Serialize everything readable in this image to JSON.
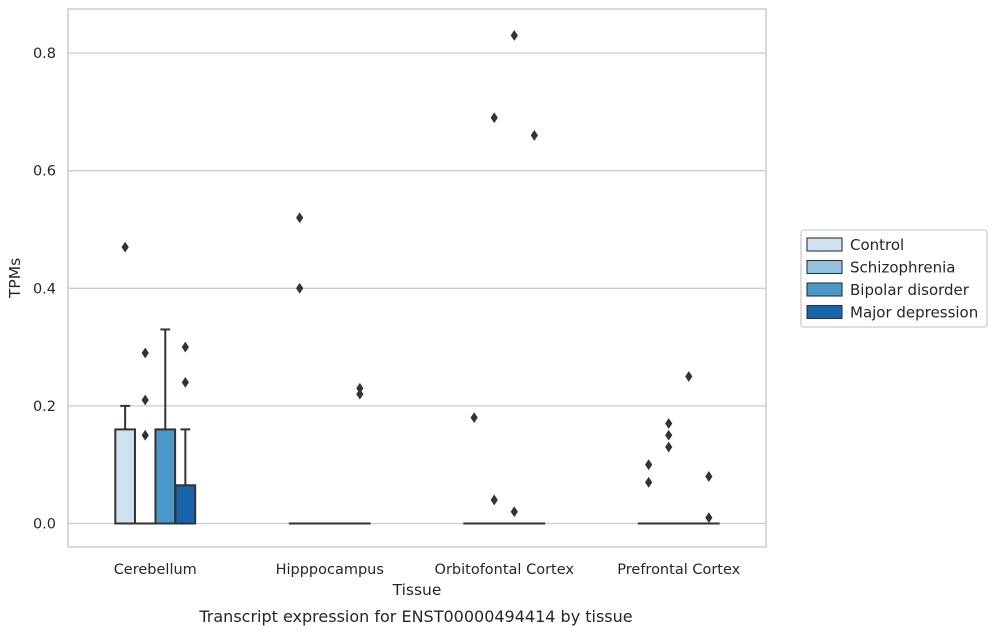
{
  "chart_data": {
    "type": "boxplot",
    "caption": "Transcript expression for ENST00000494414 by tissue",
    "xlabel": "Tissue",
    "ylabel": "TPMs",
    "ylim": [
      -0.04,
      0.875
    ],
    "yticks": [
      0.0,
      0.2,
      0.4,
      0.6,
      0.8
    ],
    "ytick_labels": [
      "0.0",
      "0.2",
      "0.4",
      "0.6",
      "0.8"
    ],
    "grid": "horizontal",
    "legend_position": "right",
    "categories": [
      "Cerebellum",
      "Hipppocampus",
      "Orbitofontal Cortex",
      "Prefrontal Cortex"
    ],
    "series": [
      {
        "name": "Control",
        "color": "#d0e1f2",
        "boxes": [
          {
            "q1": 0,
            "median": 0,
            "q3": 0.16,
            "whisker_low": 0,
            "whisker_high": 0.2,
            "outliers": [
              0.47
            ]
          },
          {
            "q1": 0,
            "median": 0,
            "q3": 0,
            "whisker_low": 0,
            "whisker_high": 0,
            "outliers": [
              0.52,
              0.4
            ]
          },
          {
            "q1": 0,
            "median": 0,
            "q3": 0,
            "whisker_low": 0,
            "whisker_high": 0,
            "outliers": [
              0.18
            ]
          },
          {
            "q1": 0,
            "median": 0,
            "q3": 0,
            "whisker_low": 0,
            "whisker_high": 0,
            "outliers": [
              0.1,
              0.07
            ]
          }
        ]
      },
      {
        "name": "Schizophrenia",
        "color": "#94c4df",
        "boxes": [
          {
            "q1": 0,
            "median": 0,
            "q3": 0,
            "whisker_low": 0,
            "whisker_high": 0,
            "outliers": [
              0.29,
              0.21,
              0.15
            ]
          },
          {
            "q1": 0,
            "median": 0,
            "q3": 0,
            "whisker_low": 0,
            "whisker_high": 0,
            "outliers": []
          },
          {
            "q1": 0,
            "median": 0,
            "q3": 0,
            "whisker_low": 0,
            "whisker_high": 0,
            "outliers": [
              0.69,
              0.04
            ]
          },
          {
            "q1": 0,
            "median": 0,
            "q3": 0,
            "whisker_low": 0,
            "whisker_high": 0,
            "outliers": [
              0.17,
              0.15,
              0.13
            ]
          }
        ]
      },
      {
        "name": "Bipolar disorder",
        "color": "#4a98c9",
        "boxes": [
          {
            "q1": 0,
            "median": 0,
            "q3": 0.16,
            "whisker_low": 0,
            "whisker_high": 0.33,
            "outliers": []
          },
          {
            "q1": 0,
            "median": 0,
            "q3": 0,
            "whisker_low": 0,
            "whisker_high": 0,
            "outliers": []
          },
          {
            "q1": 0,
            "median": 0,
            "q3": 0,
            "whisker_low": 0,
            "whisker_high": 0,
            "outliers": [
              0.83,
              0.02
            ]
          },
          {
            "q1": 0,
            "median": 0,
            "q3": 0,
            "whisker_low": 0,
            "whisker_high": 0,
            "outliers": [
              0.25
            ]
          }
        ]
      },
      {
        "name": "Major depression",
        "color": "#1764ab",
        "boxes": [
          {
            "q1": 0,
            "median": 0,
            "q3": 0.065,
            "whisker_low": 0,
            "whisker_high": 0.16,
            "outliers": [
              0.3,
              0.24
            ]
          },
          {
            "q1": 0,
            "median": 0,
            "q3": 0,
            "whisker_low": 0,
            "whisker_high": 0,
            "outliers": [
              0.23,
              0.22
            ]
          },
          {
            "q1": 0,
            "median": 0,
            "q3": 0,
            "whisker_low": 0,
            "whisker_high": 0,
            "outliers": [
              0.66
            ]
          },
          {
            "q1": 0,
            "median": 0,
            "q3": 0,
            "whisker_low": 0,
            "whisker_high": 0,
            "outliers": [
              0.08,
              0.01
            ]
          }
        ]
      }
    ]
  }
}
